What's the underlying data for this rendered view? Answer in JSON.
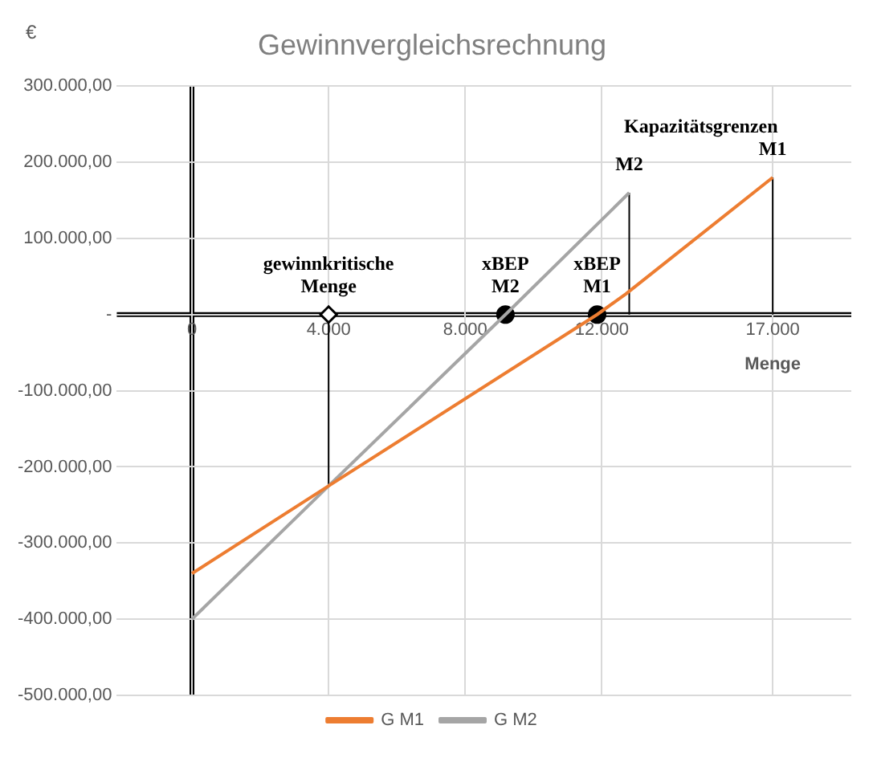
{
  "chart_data": {
    "type": "line",
    "title": "Gewinnvergleichsrechnung",
    "ylabel": "€",
    "xlabel": "Menge",
    "xlim": [
      -2200,
      19300
    ],
    "ylim": [
      -500000,
      300000
    ],
    "xticks": [
      0,
      {
        "value": 4000,
        "label": "4.000"
      },
      {
        "value": 8000,
        "label": "8.000"
      },
      {
        "value": 12000,
        "label": "12.000"
      },
      {
        "value": 17000,
        "label": "17.000"
      }
    ],
    "yticks": [
      {
        "value": -500000,
        "label": "-500.000,00"
      },
      {
        "value": -400000,
        "label": "-400.000,00"
      },
      {
        "value": -300000,
        "label": "-300.000,00"
      },
      {
        "value": -200000,
        "label": "-200.000,00"
      },
      {
        "value": -100000,
        "label": "-100.000,00"
      },
      {
        "value": 0,
        "label": "-"
      },
      {
        "value": 100000,
        "label": "100.000,00"
      },
      {
        "value": 200000,
        "label": "200.000,00"
      },
      {
        "value": 300000,
        "label": "300.000,00"
      }
    ],
    "grid": true,
    "legend": "bottom",
    "marker": "none",
    "series": [
      {
        "name": "G M1",
        "color": "#ed7d31",
        "x": [
          0,
          4000,
          11860,
          12700,
          17000
        ],
        "values": [
          -340000,
          -225000,
          0,
          27000,
          180000
        ]
      },
      {
        "name": "G M2",
        "color": "#a5a5a5",
        "x": [
          0,
          4000,
          9176,
          12800
        ],
        "values": [
          -400000,
          -225000,
          0,
          160000
        ]
      },
      {
        "color": "#000000",
        "marker": "diamond",
        "x": [
          4000,
          4000
        ],
        "values": [
          -225000,
          0
        ]
      },
      {
        "color": "#000000",
        "x": [
          12800,
          12800
        ],
        "values": [
          0,
          160000
        ]
      },
      {
        "color": "#000000",
        "x": [
          17000,
          17000
        ],
        "values": [
          0,
          180000
        ]
      },
      {
        "type": "scatter",
        "marker": "circle",
        "color": "#000000",
        "x": [
          9176,
          11860
        ],
        "values": [
          0,
          0
        ]
      }
    ],
    "annotations": [
      {
        "text": "gewinnkritische\nMenge",
        "x": 4000,
        "y": 0
      },
      {
        "text": "xBEP\nM2",
        "x": 9176,
        "y": 0
      },
      {
        "text": "xBEP\nM1",
        "x": 11860,
        "y": 0
      },
      "Kapazitätsgrenzen",
      {
        "text": "M2",
        "x": 12800,
        "y": 160000
      },
      {
        "text": "M1",
        "x": 17000,
        "y": 180000
      }
    ]
  }
}
